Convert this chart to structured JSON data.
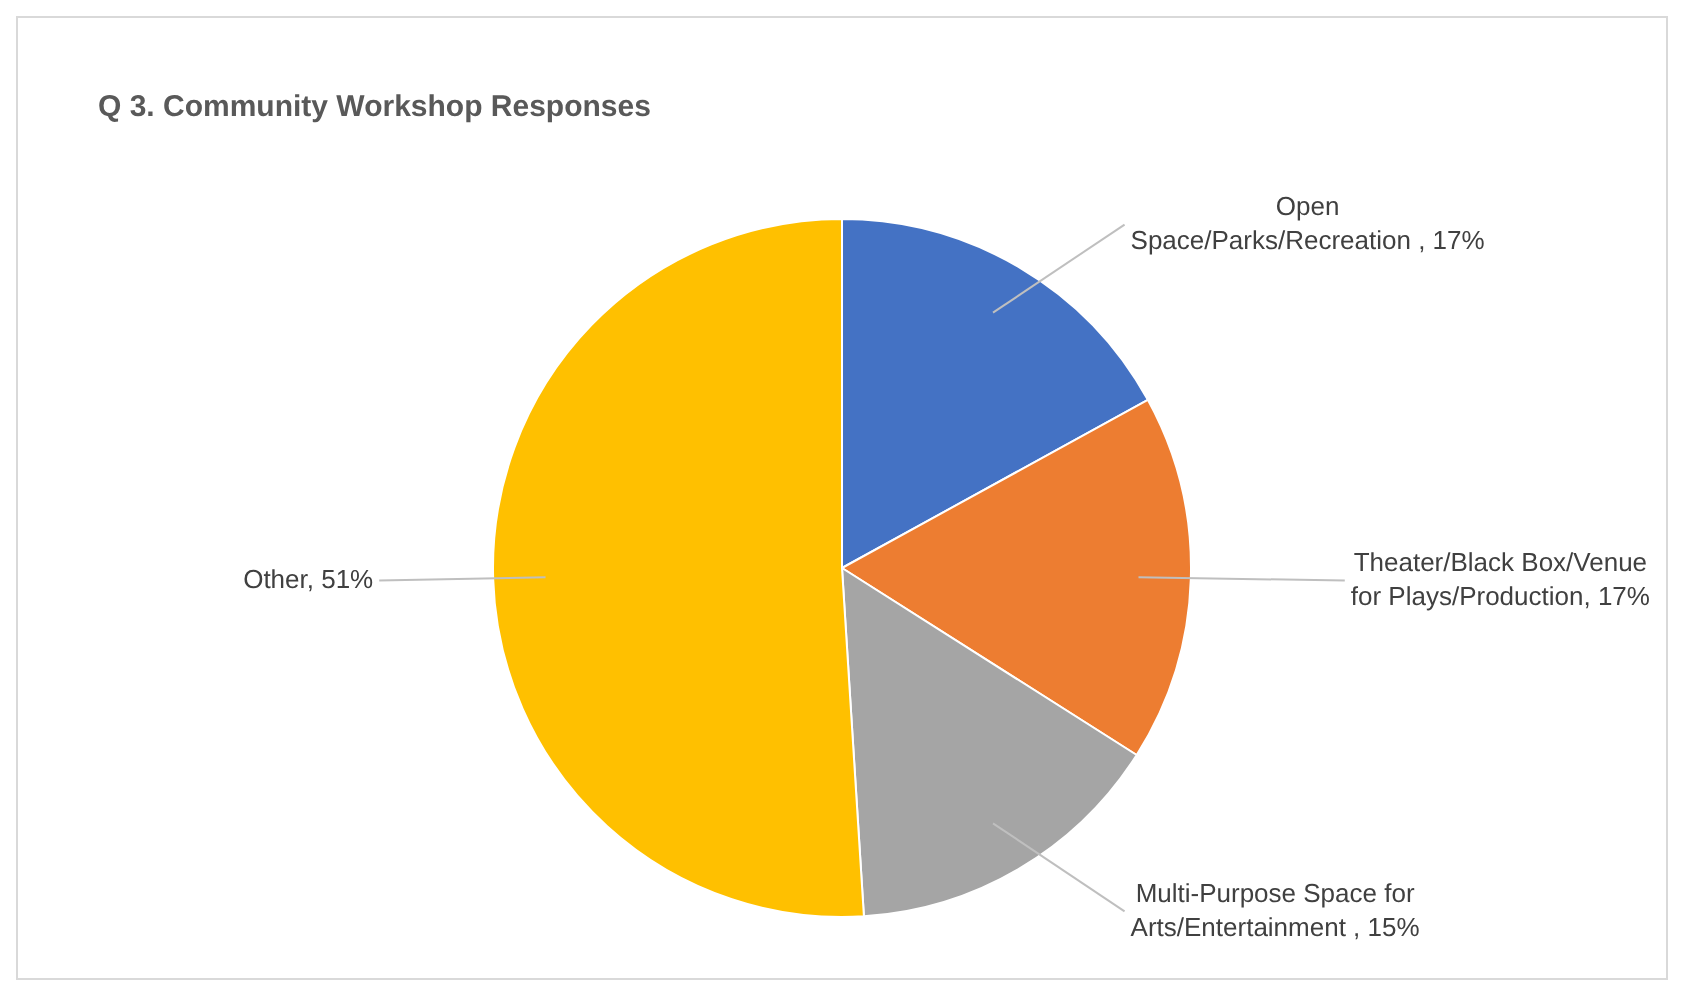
{
  "chart_data": {
    "type": "pie",
    "title": "Q 3. Community Workshop Responses",
    "categories": [
      "Open Space/Parks/Recreation ",
      "Theater/Black Box/Venue for Plays/Production",
      "Multi-Purpose Space for Arts/Entertainment ",
      "Other"
    ],
    "values": [
      17,
      17,
      15,
      51
    ],
    "value_labels": [
      "17%",
      "17%",
      "15%",
      "51%"
    ],
    "colors": [
      "#4472c4",
      "#ed7d31",
      "#a5a5a5",
      "#ffc000"
    ],
    "legend": false
  }
}
